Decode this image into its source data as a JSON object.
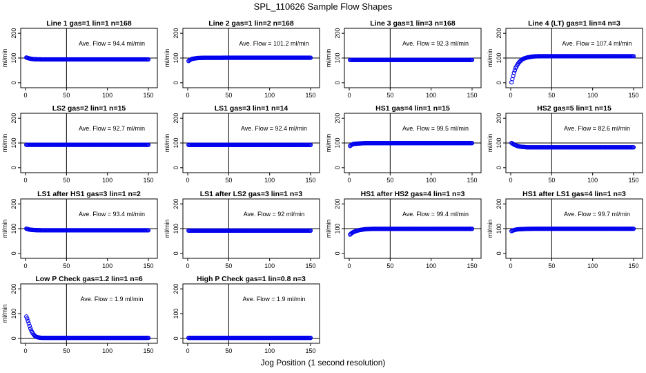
{
  "title": "SPL_110626  Sample Flow Shapes",
  "xlabel": "Jog Position (1 second resolution)",
  "colors": {
    "points": "#0000ee",
    "axis": "#000000"
  },
  "chart_data": [
    {
      "type": "scatter",
      "title": "Line 1 gas=1 lin=1 n=168",
      "ylabel": "ml/min",
      "annotation": "Ave. Flow = 94.4  ml/min",
      "xlim": [
        0,
        150
      ],
      "ylim": [
        -20,
        220
      ],
      "xticks": [
        0,
        50,
        100,
        150
      ],
      "yticks": [
        0,
        100,
        200
      ],
      "reference": {
        "x": 50,
        "y": 100
      },
      "series": [
        {
          "curve": {
            "x": [
              1,
              3,
              5,
              8,
              12,
              20,
              50,
              100,
              150
            ],
            "y": [
              102,
              100,
              98,
              96,
              95,
              94.4,
              94.4,
              94.4,
              94.4
            ]
          }
        }
      ]
    },
    {
      "type": "scatter",
      "title": "Line 2 gas=1 lin=2 n=168",
      "ylabel": "ml/min",
      "annotation": "Ave. Flow = 101.2  ml/min",
      "xlim": [
        0,
        150
      ],
      "ylim": [
        -20,
        220
      ],
      "xticks": [
        0,
        50,
        100,
        150
      ],
      "yticks": [
        0,
        100,
        200
      ],
      "reference": {
        "x": 50,
        "y": 100
      },
      "series": [
        {
          "curve": {
            "x": [
              1,
              3,
              5,
              8,
              12,
              20,
              50,
              100,
              150
            ],
            "y": [
              88,
              93,
              96,
              98,
              100,
              101,
              101.2,
              101.2,
              101.2
            ]
          }
        }
      ]
    },
    {
      "type": "scatter",
      "title": "Line 3 gas=1 lin=3 n=168",
      "ylabel": "ml/min",
      "annotation": "Ave. Flow = 92.3  ml/min",
      "xlim": [
        0,
        150
      ],
      "ylim": [
        -20,
        220
      ],
      "xticks": [
        0,
        50,
        100,
        150
      ],
      "yticks": [
        0,
        100,
        200
      ],
      "reference": {
        "x": 50,
        "y": 100
      },
      "series": [
        {
          "curve": {
            "x": [
              1,
              50,
              100,
              150
            ],
            "y": [
              92.3,
              92.3,
              92.3,
              92.3
            ]
          }
        }
      ]
    },
    {
      "type": "scatter",
      "title": "Line 4 (LT) gas=1 lin=4 n=3",
      "ylabel": "ml/min",
      "annotation": "Ave. Flow = 107.4  ml/min",
      "xlim": [
        0,
        150
      ],
      "ylim": [
        -20,
        220
      ],
      "xticks": [
        0,
        50,
        100,
        150
      ],
      "yticks": [
        0,
        100,
        200
      ],
      "reference": {
        "x": 50,
        "y": 100
      },
      "series": [
        {
          "curve": {
            "x": [
              1,
              2,
              4,
              6,
              8,
              10,
              13,
              16,
              20,
              25,
              30,
              40,
              60,
              100,
              150
            ],
            "y": [
              2,
              15,
              40,
              60,
              72,
              82,
              92,
              98,
              102,
              105,
              107,
              107.4,
              107.4,
              107.4,
              107.4
            ]
          }
        }
      ]
    },
    {
      "type": "scatter",
      "title": "LS2 gas=2 lin=1 n=15",
      "ylabel": "ml/min",
      "annotation": "Ave. Flow = 92.7  ml/min",
      "xlim": [
        0,
        150
      ],
      "ylim": [
        -20,
        220
      ],
      "xticks": [
        0,
        50,
        100,
        150
      ],
      "yticks": [
        0,
        100,
        200
      ],
      "reference": {
        "x": 50,
        "y": 100
      },
      "series": [
        {
          "curve": {
            "x": [
              1,
              50,
              100,
              150
            ],
            "y": [
              92.7,
              92.7,
              92.7,
              92.7
            ]
          }
        }
      ]
    },
    {
      "type": "scatter",
      "title": "LS1 gas=3 lin=1 n=14",
      "ylabel": "ml/min",
      "annotation": "Ave. Flow = 92.4  ml/min",
      "xlim": [
        0,
        150
      ],
      "ylim": [
        -20,
        220
      ],
      "xticks": [
        0,
        50,
        100,
        150
      ],
      "yticks": [
        0,
        100,
        200
      ],
      "reference": {
        "x": 50,
        "y": 100
      },
      "series": [
        {
          "curve": {
            "x": [
              1,
              50,
              100,
              150
            ],
            "y": [
              92.4,
              92.4,
              92.4,
              92.4
            ]
          }
        }
      ]
    },
    {
      "type": "scatter",
      "title": "HS1 gas=4 lin=1 n=15",
      "ylabel": "ml/min",
      "annotation": "Ave. Flow = 99.5  ml/min",
      "xlim": [
        0,
        150
      ],
      "ylim": [
        -20,
        220
      ],
      "xticks": [
        0,
        50,
        100,
        150
      ],
      "yticks": [
        0,
        100,
        200
      ],
      "reference": {
        "x": 50,
        "y": 100
      },
      "series": [
        {
          "curve": {
            "x": [
              1,
              3,
              5,
              8,
              12,
              20,
              50,
              100,
              150
            ],
            "y": [
              88,
              93,
              96,
              97,
              98,
              99.5,
              99.5,
              99.5,
              99.5
            ]
          }
        }
      ]
    },
    {
      "type": "scatter",
      "title": "HS2 gas=5 lin=1 n=15",
      "ylabel": "ml/min",
      "annotation": "Ave. Flow = 82.6  ml/min",
      "xlim": [
        0,
        150
      ],
      "ylim": [
        -20,
        220
      ],
      "xticks": [
        0,
        50,
        100,
        150
      ],
      "yticks": [
        0,
        100,
        200
      ],
      "reference": {
        "x": 50,
        "y": 100
      },
      "series": [
        {
          "curve": {
            "x": [
              1,
              3,
              5,
              8,
              12,
              20,
              50,
              100,
              150
            ],
            "y": [
              100,
              96,
              92,
              88,
              85,
              82.6,
              82.6,
              82.6,
              82.6
            ]
          }
        }
      ]
    },
    {
      "type": "scatter",
      "title": "LS1 after HS1 gas=3 lin=1 n=2",
      "ylabel": "ml/min",
      "annotation": "Ave. Flow = 93.4  ml/min",
      "xlim": [
        0,
        150
      ],
      "ylim": [
        -20,
        220
      ],
      "xticks": [
        0,
        50,
        100,
        150
      ],
      "yticks": [
        0,
        100,
        200
      ],
      "reference": {
        "x": 50,
        "y": 100
      },
      "series": [
        {
          "curve": {
            "x": [
              1,
              3,
              5,
              8,
              12,
              20,
              50,
              100,
              150
            ],
            "y": [
              100,
              98,
              96,
              95,
              94,
              93.4,
              93.4,
              93.4,
              93.4
            ]
          }
        }
      ]
    },
    {
      "type": "scatter",
      "title": "LS1 after LS2 gas=3 lin=1 n=3",
      "ylabel": "ml/min",
      "annotation": "Ave. Flow = 92  ml/min",
      "xlim": [
        0,
        150
      ],
      "ylim": [
        -20,
        220
      ],
      "xticks": [
        0,
        50,
        100,
        150
      ],
      "yticks": [
        0,
        100,
        200
      ],
      "reference": {
        "x": 50,
        "y": 100
      },
      "series": [
        {
          "curve": {
            "x": [
              1,
              50,
              100,
              150
            ],
            "y": [
              92,
              92,
              92,
              92
            ]
          }
        }
      ]
    },
    {
      "type": "scatter",
      "title": "HS1 after HS2 gas=4 lin=1 n=3",
      "ylabel": "ml/min",
      "annotation": "Ave. Flow = 99.4  ml/min",
      "xlim": [
        0,
        150
      ],
      "ylim": [
        -20,
        220
      ],
      "xticks": [
        0,
        50,
        100,
        150
      ],
      "yticks": [
        0,
        100,
        200
      ],
      "reference": {
        "x": 50,
        "y": 100
      },
      "series": [
        {
          "curve": {
            "x": [
              1,
              3,
              5,
              8,
              12,
              16,
              20,
              30,
              50,
              100,
              150
            ],
            "y": [
              76,
              82,
              86,
              90,
              94,
              96,
              98,
              99.4,
              99.4,
              99.4,
              99.4
            ]
          }
        }
      ]
    },
    {
      "type": "scatter",
      "title": "HS1 after LS1 gas=4 lin=1 n=3",
      "ylabel": "ml/min",
      "annotation": "Ave. Flow = 99.7  ml/min",
      "xlim": [
        0,
        150
      ],
      "ylim": [
        -20,
        220
      ],
      "xticks": [
        0,
        50,
        100,
        150
      ],
      "yticks": [
        0,
        100,
        200
      ],
      "reference": {
        "x": 50,
        "y": 100
      },
      "series": [
        {
          "curve": {
            "x": [
              1,
              3,
              5,
              8,
              12,
              20,
              30,
              50,
              100,
              150
            ],
            "y": [
              90,
              93,
              95,
              97,
              98,
              99,
              99.7,
              99.7,
              99.7,
              99.7
            ]
          }
        }
      ]
    },
    {
      "type": "scatter",
      "title": "Low P Check gas=1.2 lin=1 n=6",
      "ylabel": "ml/min",
      "annotation": "Ave. Flow = 1.9  ml/min",
      "xlim": [
        0,
        150
      ],
      "ylim": [
        -20,
        220
      ],
      "xticks": [
        0,
        50,
        100,
        150
      ],
      "yticks": [
        0,
        100,
        200
      ],
      "reference": {
        "x": 50,
        "y": 0
      },
      "series": [
        {
          "curve": {
            "x": [
              1,
              2,
              3,
              4,
              5,
              6,
              7,
              8,
              10,
              12,
              14,
              17,
              20,
              50,
              100,
              150
            ],
            "y": [
              88,
              80,
              70,
              60,
              50,
              40,
              32,
              25,
              15,
              8,
              5,
              3,
              2,
              1.9,
              1.9,
              1.9
            ]
          }
        }
      ]
    },
    {
      "type": "scatter",
      "title": "High P Check gas=1 lin=0.8 n=3",
      "ylabel": "",
      "annotation": "Ave. Flow = 1.9  ml/min",
      "xlim": [
        0,
        150
      ],
      "ylim": [
        -20,
        220
      ],
      "xticks": [
        0,
        50,
        100,
        150
      ],
      "yticks": [
        0,
        100,
        200
      ],
      "reference": {
        "x": 50,
        "y": 0
      },
      "series": [
        {
          "curve": {
            "x": [
              1,
              50,
              100,
              150
            ],
            "y": [
              1.9,
              1.9,
              1.9,
              1.9
            ]
          }
        }
      ]
    }
  ]
}
